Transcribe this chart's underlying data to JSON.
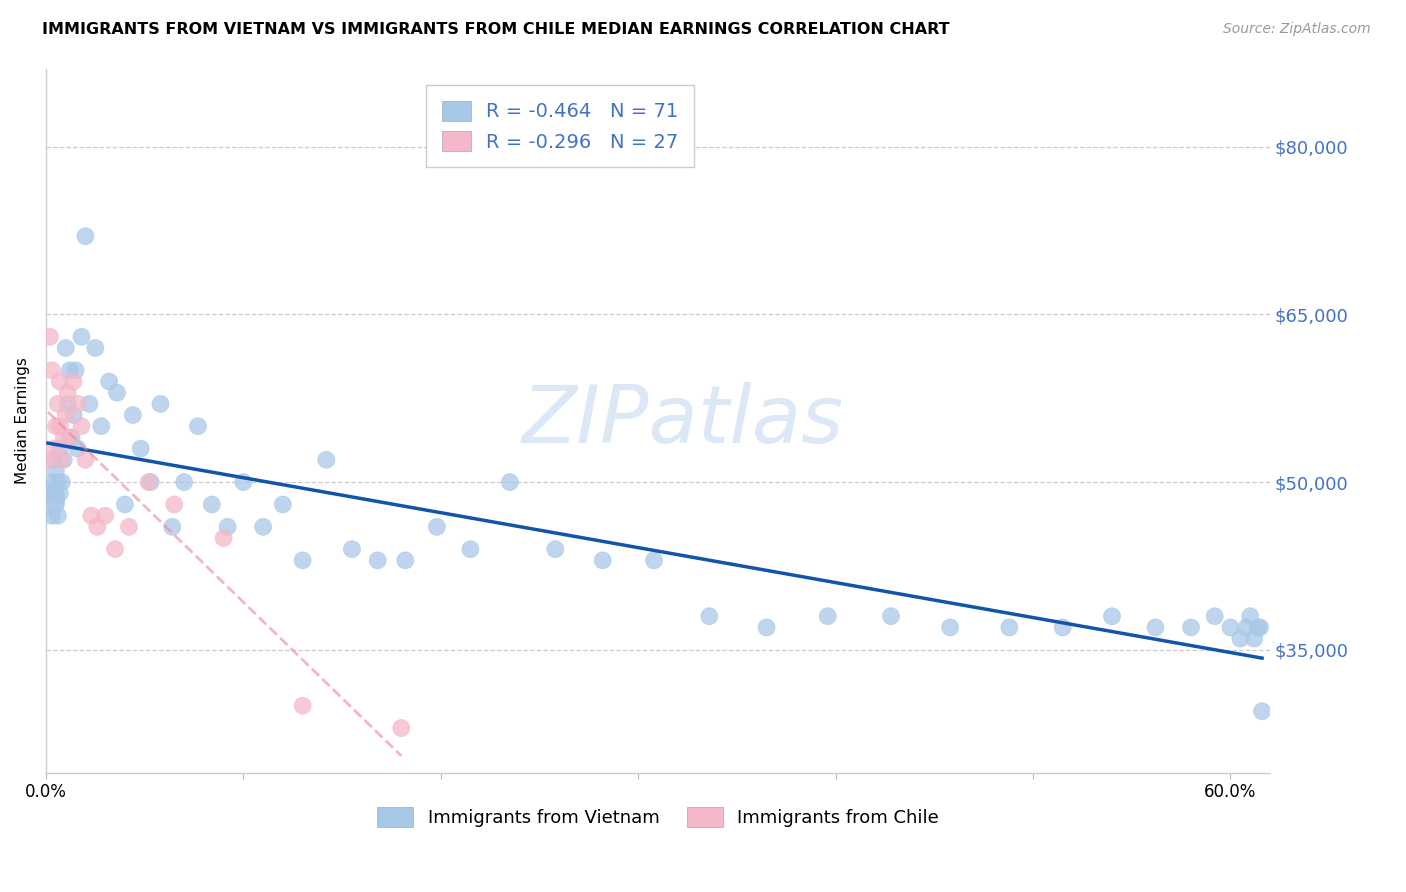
{
  "title": "IMMIGRANTS FROM VIETNAM VS IMMIGRANTS FROM CHILE MEDIAN EARNINGS CORRELATION CHART",
  "source": "Source: ZipAtlas.com",
  "ylabel": "Median Earnings",
  "xlim": [
    0.0,
    0.62
  ],
  "ylim": [
    24000,
    87000
  ],
  "yticks": [
    35000,
    50000,
    65000,
    80000
  ],
  "ytick_labels": [
    "$35,000",
    "$50,000",
    "$65,000",
    "$80,000"
  ],
  "xtick_positions": [
    0.0,
    0.1,
    0.2,
    0.3,
    0.4,
    0.5,
    0.6
  ],
  "xtick_labels": [
    "0.0%",
    "",
    "",
    "",
    "",
    "",
    "60.0%"
  ],
  "vietnam_color": "#a8c8e8",
  "chile_color": "#f4b8c8",
  "vietnam_line_color": "#1155aa",
  "chile_line_color": "#ee8899",
  "axis_label_color": "#4472c4",
  "legend_text_color": "#4472c4",
  "grid_color": "#cccccc",
  "watermark_color": "#dce8f5",
  "vietnam_R": "-0.464",
  "vietnam_N": "71",
  "chile_R": "-0.296",
  "chile_N": "27",
  "vietnam_x": [
    0.001,
    0.002,
    0.003,
    0.003,
    0.004,
    0.004,
    0.005,
    0.005,
    0.006,
    0.006,
    0.007,
    0.007,
    0.008,
    0.009,
    0.01,
    0.011,
    0.012,
    0.013,
    0.014,
    0.015,
    0.016,
    0.018,
    0.02,
    0.022,
    0.025,
    0.028,
    0.032,
    0.036,
    0.04,
    0.044,
    0.048,
    0.053,
    0.058,
    0.064,
    0.07,
    0.077,
    0.084,
    0.092,
    0.1,
    0.11,
    0.12,
    0.13,
    0.142,
    0.155,
    0.168,
    0.182,
    0.198,
    0.215,
    0.235,
    0.258,
    0.282,
    0.308,
    0.336,
    0.365,
    0.396,
    0.428,
    0.458,
    0.488,
    0.515,
    0.54,
    0.562,
    0.58,
    0.592,
    0.6,
    0.605,
    0.608,
    0.61,
    0.612,
    0.614,
    0.615,
    0.616
  ],
  "vietnam_y": [
    48500,
    49000,
    47000,
    50000,
    49000,
    52000,
    48000,
    51000,
    50000,
    47000,
    53000,
    49000,
    50000,
    52000,
    62000,
    57000,
    60000,
    54000,
    56000,
    60000,
    53000,
    63000,
    72000,
    57000,
    62000,
    55000,
    59000,
    58000,
    48000,
    56000,
    53000,
    50000,
    57000,
    46000,
    50000,
    55000,
    48000,
    46000,
    50000,
    46000,
    48000,
    43000,
    52000,
    44000,
    43000,
    43000,
    46000,
    44000,
    50000,
    44000,
    43000,
    43000,
    38000,
    37000,
    38000,
    38000,
    37000,
    37000,
    37000,
    38000,
    37000,
    37000,
    38000,
    37000,
    36000,
    37000,
    38000,
    36000,
    37000,
    37000,
    29500
  ],
  "vietnam_sizes": [
    600,
    150,
    150,
    150,
    150,
    150,
    150,
    150,
    150,
    150,
    150,
    150,
    150,
    150,
    150,
    150,
    150,
    150,
    150,
    150,
    150,
    150,
    150,
    150,
    150,
    150,
    150,
    150,
    150,
    150,
    150,
    150,
    150,
    150,
    150,
    150,
    150,
    150,
    150,
    150,
    150,
    150,
    150,
    150,
    150,
    150,
    150,
    150,
    150,
    150,
    150,
    150,
    150,
    150,
    150,
    150,
    150,
    150,
    150,
    150,
    150,
    150,
    150,
    150,
    150,
    150,
    150,
    150,
    150,
    150,
    150
  ],
  "chile_x": [
    0.001,
    0.002,
    0.003,
    0.004,
    0.005,
    0.006,
    0.007,
    0.007,
    0.008,
    0.009,
    0.01,
    0.011,
    0.012,
    0.014,
    0.016,
    0.018,
    0.02,
    0.023,
    0.026,
    0.03,
    0.035,
    0.042,
    0.052,
    0.065,
    0.09,
    0.13,
    0.18
  ],
  "chile_y": [
    52000,
    63000,
    60000,
    53000,
    55000,
    57000,
    59000,
    55000,
    52000,
    54000,
    56000,
    58000,
    54000,
    59000,
    57000,
    55000,
    52000,
    47000,
    46000,
    47000,
    44000,
    46000,
    50000,
    48000,
    45000,
    30000,
    28000
  ],
  "chile_sizes": [
    150,
    150,
    150,
    150,
    150,
    150,
    150,
    150,
    150,
    150,
    150,
    150,
    150,
    150,
    150,
    150,
    150,
    150,
    150,
    150,
    150,
    150,
    150,
    150,
    150,
    150,
    150
  ]
}
